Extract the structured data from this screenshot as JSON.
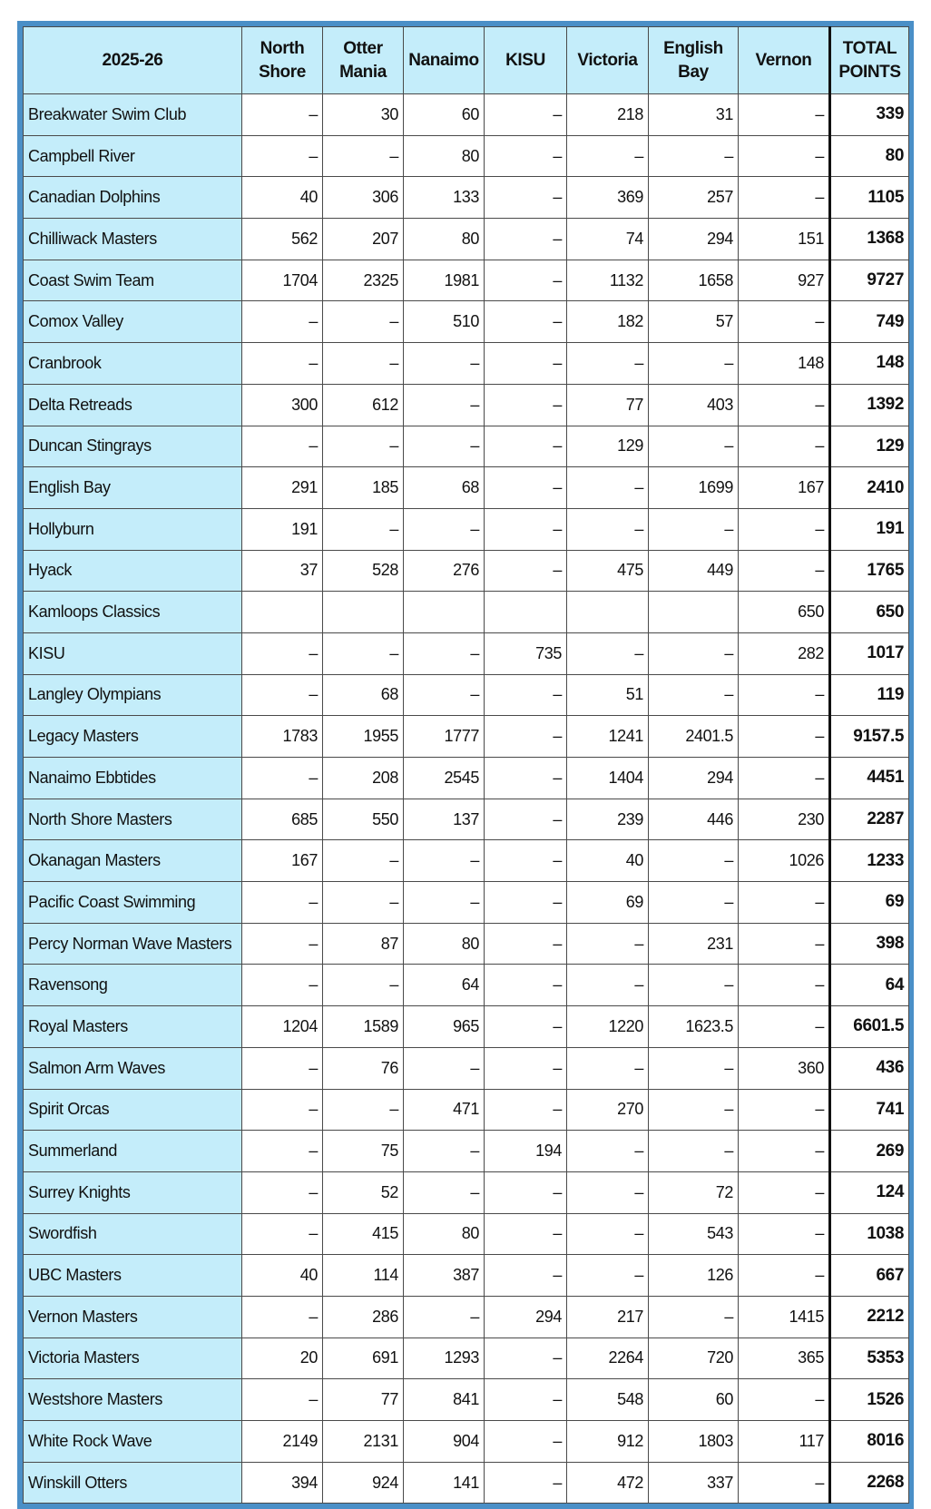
{
  "table": {
    "header": [
      "2025-26",
      "North Shore",
      "Otter Mania",
      "Nanaimo",
      "KISU",
      "Victoria",
      "English Bay",
      "Vernon",
      "TOTAL POINTS"
    ],
    "rows": [
      [
        "Breakwater Swim Club",
        "–",
        "30",
        "60",
        "–",
        "218",
        "31",
        "–",
        "339"
      ],
      [
        "Campbell River",
        "–",
        "–",
        "80",
        "–",
        "–",
        "–",
        "–",
        "80"
      ],
      [
        "Canadian Dolphins",
        "40",
        "306",
        "133",
        "–",
        "369",
        "257",
        "–",
        "1105"
      ],
      [
        "Chilliwack Masters",
        "562",
        "207",
        "80",
        "–",
        "74",
        "294",
        "151",
        "1368"
      ],
      [
        "Coast Swim Team",
        "1704",
        "2325",
        "1981",
        "–",
        "1132",
        "1658",
        "927",
        "9727"
      ],
      [
        "Comox Valley",
        "–",
        "–",
        "510",
        "–",
        "182",
        "57",
        "–",
        "749"
      ],
      [
        "Cranbrook",
        "–",
        "–",
        "–",
        "–",
        "–",
        "–",
        "148",
        "148"
      ],
      [
        "Delta Retreads",
        "300",
        "612",
        "–",
        "–",
        "77",
        "403",
        "–",
        "1392"
      ],
      [
        "Duncan Stingrays",
        "–",
        "–",
        "–",
        "–",
        "129",
        "–",
        "–",
        "129"
      ],
      [
        "English Bay",
        "291",
        "185",
        "68",
        "–",
        "–",
        "1699",
        "167",
        "2410"
      ],
      [
        "Hollyburn",
        "191",
        "–",
        "–",
        "–",
        "–",
        "–",
        "–",
        "191"
      ],
      [
        "Hyack",
        "37",
        "528",
        "276",
        "–",
        "475",
        "449",
        "–",
        "1765"
      ],
      [
        "Kamloops Classics",
        null,
        null,
        null,
        null,
        null,
        null,
        "650",
        "650"
      ],
      [
        "KISU",
        "–",
        "–",
        "–",
        "735",
        "–",
        "–",
        "282",
        "1017"
      ],
      [
        "Langley Olympians",
        "–",
        "68",
        "–",
        "–",
        "51",
        "–",
        "–",
        "119"
      ],
      [
        "Legacy Masters",
        "1783",
        "1955",
        "1777",
        "–",
        "1241",
        "2401.5",
        "–",
        "9157.5"
      ],
      [
        "Nanaimo Ebbtides",
        "–",
        "208",
        "2545",
        "–",
        "1404",
        "294",
        "–",
        "4451"
      ],
      [
        "North Shore Masters",
        "685",
        "550",
        "137",
        "–",
        "239",
        "446",
        "230",
        "2287"
      ],
      [
        "Okanagan Masters",
        "167",
        "–",
        "–",
        "–",
        "40",
        "–",
        "1026",
        "1233"
      ],
      [
        "Pacific Coast Swimming",
        "–",
        "–",
        "–",
        "–",
        "69",
        "–",
        "–",
        "69"
      ],
      [
        "Percy Norman Wave Masters",
        "–",
        "87",
        "80",
        "–",
        "–",
        "231",
        "–",
        "398"
      ],
      [
        "Ravensong",
        "–",
        "–",
        "64",
        "–",
        "–",
        "–",
        "–",
        "64"
      ],
      [
        "Royal Masters",
        "1204",
        "1589",
        "965",
        "–",
        "1220",
        "1623.5",
        "–",
        "6601.5"
      ],
      [
        "Salmon Arm Waves",
        "–",
        "76",
        "–",
        "–",
        "–",
        "–",
        "360",
        "436"
      ],
      [
        "Spirit Orcas",
        "–",
        "–",
        "471",
        "–",
        "270",
        "–",
        "–",
        "741"
      ],
      [
        "Summerland",
        "–",
        "75",
        "–",
        "194",
        "–",
        "–",
        "–",
        "269"
      ],
      [
        "Surrey Knights",
        "–",
        "52",
        "–",
        "–",
        "–",
        "72",
        "–",
        "124"
      ],
      [
        "Swordfish",
        "–",
        "415",
        "80",
        "–",
        "–",
        "543",
        "–",
        "1038"
      ],
      [
        "UBC Masters",
        "40",
        "114",
        "387",
        "–",
        "–",
        "126",
        "–",
        "667"
      ],
      [
        "Vernon Masters",
        "–",
        "286",
        "–",
        "294",
        "217",
        "–",
        "1415",
        "2212"
      ],
      [
        "Victoria Masters",
        "20",
        "691",
        "1293",
        "–",
        "2264",
        "720",
        "365",
        "5353"
      ],
      [
        "Westshore Masters",
        "–",
        "77",
        "841",
        "–",
        "548",
        "60",
        "–",
        "1526"
      ],
      [
        "White Rock Wave",
        "2149",
        "2131",
        "904",
        "–",
        "912",
        "1803",
        "117",
        "8016"
      ],
      [
        "Winskill Otters",
        "394",
        "924",
        "141",
        "–",
        "472",
        "337",
        "–",
        "2268"
      ]
    ]
  }
}
